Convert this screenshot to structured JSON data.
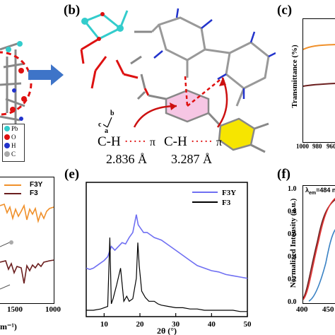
{
  "panels": {
    "b": {
      "label": "(b)"
    },
    "c": {
      "label": "(c)"
    },
    "e": {
      "label": "(e)"
    },
    "f": {
      "label": "(f)"
    }
  },
  "panel_a": {
    "legend": [
      "Pb",
      "O",
      "H",
      "C"
    ],
    "legend_colors": [
      "#33cccc",
      "#dd1111",
      "#2233cc",
      "#aaaaaa"
    ]
  },
  "panel_b": {
    "axes": {
      "b": "b",
      "c": "c",
      "a": "a"
    },
    "interactions": [
      {
        "label": "C-H",
        "dots": "·····",
        "pi": "π",
        "distance": "2.836 Å"
      },
      {
        "label": "C-H",
        "dots": "·····",
        "pi": "π",
        "distance": "3.287 Å"
      }
    ]
  },
  "panel_c": {
    "ylabel": "Transmittance (%)",
    "xticks": [
      "1000",
      "980",
      "960"
    ]
  },
  "panel_d": {
    "legend": [
      "F3Y",
      "F3"
    ],
    "xticks": [
      "1500",
      "1000"
    ],
    "xlabel_fragment": "m⁻¹)"
  },
  "panel_f": {
    "ylabel": "Normalized Intensity (a.u.)",
    "yticks": [
      "1.0",
      "0.8",
      "0.6",
      "0.4",
      "0.2",
      "0.0"
    ],
    "xticks": [
      "400",
      "450"
    ],
    "annotation": "λ",
    "annotation_sub": "em",
    "annotation_rest": "=484 nm"
  },
  "chart_data": {
    "type": "line",
    "title": "",
    "xlabel": "2θ (°)",
    "ylabel": "",
    "xlim": [
      5,
      50
    ],
    "xticks": [
      "10",
      "20",
      "30",
      "40",
      "50"
    ],
    "legend_position": "top-right",
    "series": [
      {
        "name": "F3Y",
        "color": "#6f6ff2",
        "x": [
          5,
          6,
          7,
          8,
          9,
          10,
          11,
          12,
          13,
          14,
          15,
          16,
          17,
          18,
          19,
          19.5,
          20,
          21,
          22,
          23,
          24,
          25,
          26,
          28,
          30,
          32,
          34,
          36,
          38,
          40,
          42,
          44,
          46,
          48,
          50
        ],
        "y": [
          0.38,
          0.37,
          0.38,
          0.4,
          0.42,
          0.44,
          0.47,
          0.55,
          0.52,
          0.55,
          0.58,
          0.57,
          0.62,
          0.66,
          0.8,
          0.72,
          0.7,
          0.66,
          0.66,
          0.64,
          0.62,
          0.61,
          0.6,
          0.56,
          0.52,
          0.48,
          0.44,
          0.4,
          0.38,
          0.36,
          0.35,
          0.33,
          0.32,
          0.31,
          0.3
        ]
      },
      {
        "name": "F3",
        "color": "#000000",
        "x": [
          5,
          7,
          9,
          10,
          11,
          11.6,
          12,
          12.5,
          13.5,
          14.6,
          15.5,
          16.3,
          17,
          18,
          19,
          19.4,
          19.8,
          20.5,
          21.5,
          22.5,
          24,
          25,
          26,
          28,
          30,
          32,
          34,
          36,
          38,
          40,
          42,
          44,
          46,
          48,
          50
        ],
        "y": [
          0.05,
          0.05,
          0.06,
          0.07,
          0.08,
          0.62,
          0.1,
          0.14,
          0.25,
          0.38,
          0.12,
          0.16,
          0.12,
          0.14,
          0.3,
          0.58,
          0.4,
          0.2,
          0.15,
          0.12,
          0.12,
          0.1,
          0.09,
          0.08,
          0.07,
          0.07,
          0.06,
          0.06,
          0.05,
          0.05,
          0.05,
          0.05,
          0.05,
          0.04,
          0.04
        ]
      }
    ]
  }
}
